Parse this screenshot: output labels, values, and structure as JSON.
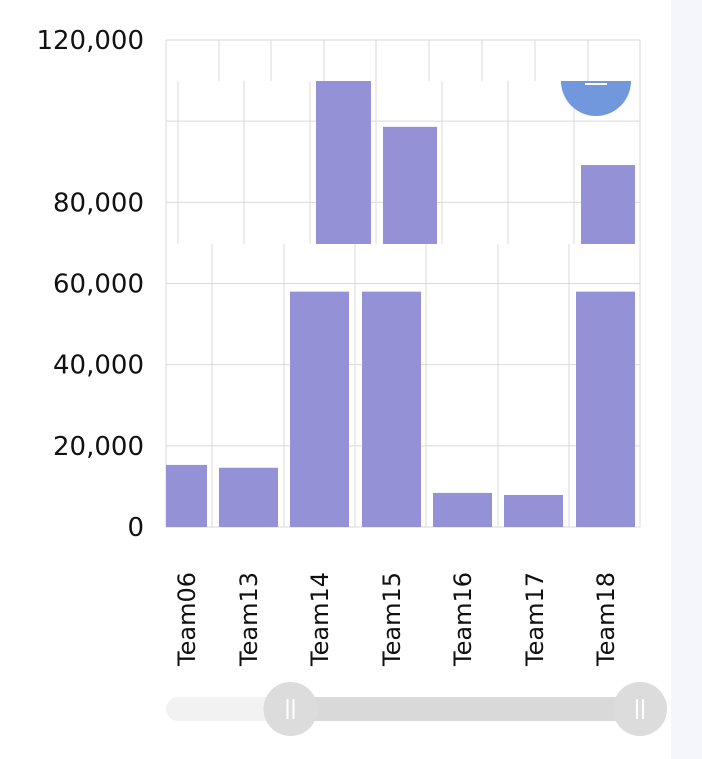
{
  "colors": {
    "bar": "#9591d6",
    "bubble": "#7198dd",
    "grid": "#d9d9d9",
    "slider_track": "#f2f2f2",
    "slider_range": "#d9d9d9",
    "slider_handle": "#dcdcdc",
    "right_panel": "#f4f6fb"
  },
  "chart_data": {
    "type": "bar",
    "title": "",
    "xlabel": "",
    "ylabel": "",
    "ylim": [
      0,
      120000
    ],
    "yticks": [
      0,
      20000,
      40000,
      60000,
      80000,
      100000,
      120000
    ],
    "ytick_labels": [
      "0",
      "20,000",
      "40,000",
      "60,000",
      "80,000",
      "",
      "120,000"
    ],
    "grid": true,
    "legend": "none",
    "categories": [
      "Team06",
      "Team13",
      "Team14",
      "Team15",
      "Team16",
      "Team17",
      "Team18"
    ],
    "values": [
      15300,
      14600,
      58000,
      58000,
      8400,
      7900,
      58000
    ],
    "upper_overlay": {
      "values": [
        null,
        null,
        92000,
        83000,
        null,
        null,
        75500
      ],
      "ylim": [
        60000,
        92000
      ]
    },
    "bubble": {
      "category": "Team18",
      "value": 92000
    }
  },
  "zoom_slider": {
    "range": [
      0.25,
      1.0
    ]
  }
}
